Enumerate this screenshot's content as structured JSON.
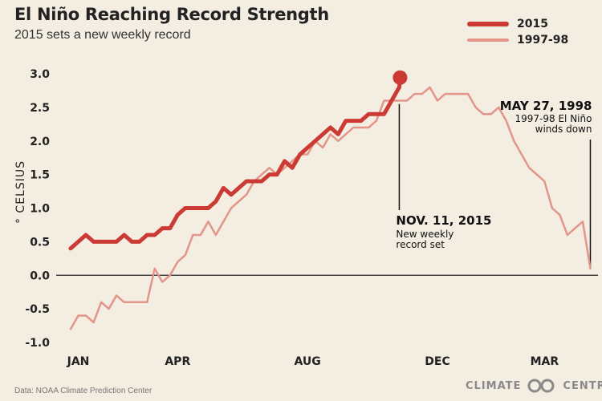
{
  "title": "El Niño Reaching Record Strength",
  "subtitle": "2015 sets a new weekly record",
  "source": "Data: NOAA Climate Prediction Center",
  "brand": {
    "left": "CLIMATE",
    "right": "CENTRAL",
    "icon": "linked-rings-icon"
  },
  "colors": {
    "background": "#f3ede2",
    "s2015": "#cc3a34",
    "s1997": "#e3958a",
    "zero": "#444444",
    "annotation": "#111111"
  },
  "chart_data": {
    "type": "line",
    "ylabel": "° CELSIUS",
    "ylim": [
      -1.0,
      3.0
    ],
    "yticks": [
      "3.0",
      "2.5",
      "2.0",
      "1.5",
      "1.0",
      "0.5",
      "0.0",
      "-0.5",
      "-1.0"
    ],
    "xlim": [
      0,
      69
    ],
    "xticks": [
      {
        "label": "JAN",
        "x": 1
      },
      {
        "label": "APR",
        "x": 14
      },
      {
        "label": "AUG",
        "x": 31
      },
      {
        "label": "DEC",
        "x": 48
      },
      {
        "label": "MAR",
        "x": 62
      }
    ],
    "grid": false,
    "legend_position": "top-right",
    "series": [
      {
        "name": "2015",
        "x": [
          0,
          1,
          2,
          3,
          4,
          5,
          6,
          7,
          8,
          9,
          10,
          11,
          12,
          13,
          14,
          15,
          16,
          17,
          18,
          19,
          20,
          21,
          22,
          23,
          24,
          25,
          26,
          27,
          28,
          29,
          30,
          31,
          32,
          33,
          34,
          35,
          36,
          37,
          38,
          39,
          40,
          41,
          42,
          43
        ],
        "y": [
          0.4,
          0.5,
          0.6,
          0.5,
          0.5,
          0.5,
          0.5,
          0.6,
          0.5,
          0.5,
          0.6,
          0.6,
          0.7,
          0.7,
          0.9,
          1.0,
          1.0,
          1.0,
          1.0,
          1.1,
          1.3,
          1.2,
          1.3,
          1.4,
          1.4,
          1.4,
          1.5,
          1.5,
          1.7,
          1.6,
          1.8,
          1.9,
          2.0,
          2.1,
          2.2,
          2.1,
          2.3,
          2.3,
          2.3,
          2.4,
          2.4,
          2.4,
          2.6,
          2.8
        ],
        "marker_last": true
      },
      {
        "name": "1997-98",
        "x": [
          0,
          1,
          2,
          3,
          4,
          5,
          6,
          7,
          8,
          9,
          10,
          11,
          12,
          13,
          14,
          15,
          16,
          17,
          18,
          19,
          20,
          21,
          22,
          23,
          24,
          25,
          26,
          27,
          28,
          29,
          30,
          31,
          32,
          33,
          34,
          35,
          36,
          37,
          38,
          39,
          40,
          41,
          42,
          43,
          44,
          45,
          46,
          47,
          48,
          49,
          50,
          51,
          52,
          53,
          54,
          55,
          56,
          57,
          58,
          59,
          60,
          61,
          62,
          63,
          64,
          65,
          66,
          67,
          68
        ],
        "y": [
          -0.8,
          -0.6,
          -0.6,
          -0.7,
          -0.4,
          -0.5,
          -0.3,
          -0.4,
          -0.4,
          -0.4,
          -0.4,
          0.1,
          -0.1,
          0.0,
          0.2,
          0.3,
          0.6,
          0.6,
          0.8,
          0.6,
          0.8,
          1.0,
          1.1,
          1.2,
          1.4,
          1.5,
          1.6,
          1.5,
          1.6,
          1.7,
          1.8,
          1.8,
          2.0,
          1.9,
          2.1,
          2.0,
          2.1,
          2.2,
          2.2,
          2.2,
          2.3,
          2.6,
          2.6,
          2.6,
          2.6,
          2.7,
          2.7,
          2.8,
          2.6,
          2.7,
          2.7,
          2.7,
          2.7,
          2.5,
          2.4,
          2.4,
          2.5,
          2.3,
          2.0,
          1.8,
          1.6,
          1.5,
          1.4,
          1.0,
          0.9,
          0.6,
          0.7,
          0.8,
          0.1
        ]
      }
    ],
    "annotations": [
      {
        "x": 43,
        "bold": "NOV. 11, 2015",
        "text": [
          "New weekly",
          "record set"
        ]
      },
      {
        "x": 68,
        "bold": "MAY 27, 1998",
        "text": [
          "1997-98 El Niño",
          "winds down"
        ]
      }
    ]
  }
}
